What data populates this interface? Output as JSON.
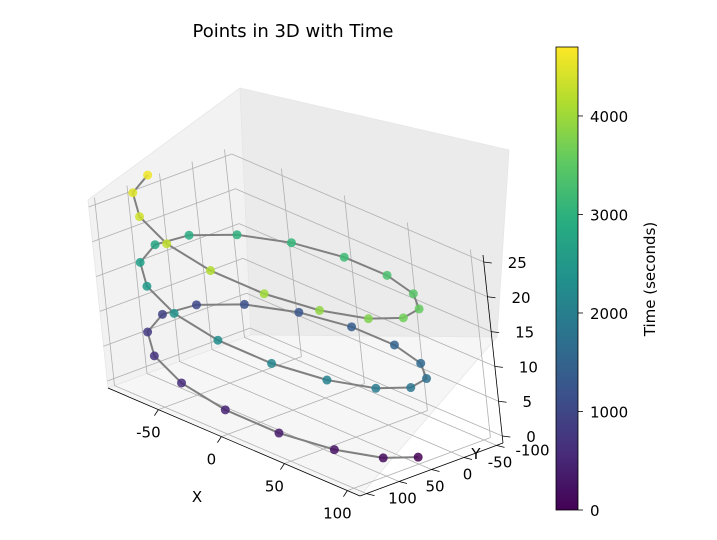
{
  "chart_data": {
    "type": "scatter",
    "title": "Points in 3D with Time",
    "xlabel": "X",
    "ylabel": "Y",
    "zlabel": "",
    "xticks": [
      "-50",
      "0",
      "50",
      "100"
    ],
    "yticks": [
      "-100",
      "-50",
      "0",
      "50",
      "100"
    ],
    "zticks": [
      "0",
      "5",
      "10",
      "15",
      "20",
      "25"
    ],
    "xlim": [
      -90,
      110
    ],
    "ylim": [
      -110,
      110
    ],
    "zlim": [
      -1,
      26
    ],
    "grid": true,
    "colormap": "viridis",
    "colorbar": {
      "label": "Time (seconds)",
      "ticks": [
        "0",
        "1000",
        "2000",
        "3000",
        "4000"
      ],
      "range": [
        0,
        4700
      ]
    },
    "line_color": "#808080",
    "x": [
      100,
      92.4,
      70.7,
      38.3,
      0,
      -38.3,
      -70.7,
      -92.4,
      -100,
      -92.4,
      -70.7,
      -38.3,
      0,
      38.3,
      70.7,
      92.4,
      100,
      92.4,
      70.7,
      38.3,
      0,
      -38.3,
      -70.7,
      -92.4,
      -100,
      -92.4,
      -70.7,
      -38.3,
      0,
      38.3,
      70.7,
      92.4,
      100,
      92.4,
      70.7,
      38.3,
      0,
      -38.3,
      -70.7,
      -92.4,
      -100
    ],
    "y": [
      0,
      38.3,
      70.7,
      92.4,
      100,
      92.4,
      70.7,
      38.3,
      0,
      -38.3,
      -70.7,
      -92.4,
      -100,
      -92.4,
      -70.7,
      -38.3,
      0,
      38.3,
      70.7,
      92.4,
      100,
      92.4,
      70.7,
      38.3,
      0,
      -38.3,
      -70.7,
      -92.4,
      -100,
      -92.4,
      -70.7,
      -38.3,
      0,
      38.3,
      70.7,
      92.4,
      100,
      92.4,
      70.7,
      38.3,
      0
    ],
    "z": [
      0,
      0.625,
      1.25,
      1.875,
      2.5,
      3.125,
      3.75,
      4.375,
      5,
      5.625,
      6.25,
      6.875,
      7.5,
      8.125,
      8.75,
      9.375,
      10,
      10.625,
      11.25,
      11.875,
      12.5,
      13.125,
      13.75,
      14.375,
      15,
      15.625,
      16.25,
      16.875,
      17.5,
      18.125,
      18.75,
      19.375,
      20,
      20.625,
      21.25,
      21.875,
      22.5,
      23.125,
      23.75,
      24.375,
      25
    ],
    "time": [
      0,
      115,
      230,
      345,
      460,
      575,
      690,
      805,
      920,
      1035,
      1150,
      1265,
      1380,
      1495,
      1610,
      1725,
      1840,
      1955,
      2070,
      2185,
      2300,
      2415,
      2530,
      2645,
      2760,
      2875,
      2990,
      3105,
      3220,
      3335,
      3450,
      3565,
      3680,
      3795,
      3910,
      4025,
      4140,
      4255,
      4370,
      4485,
      4600
    ]
  }
}
